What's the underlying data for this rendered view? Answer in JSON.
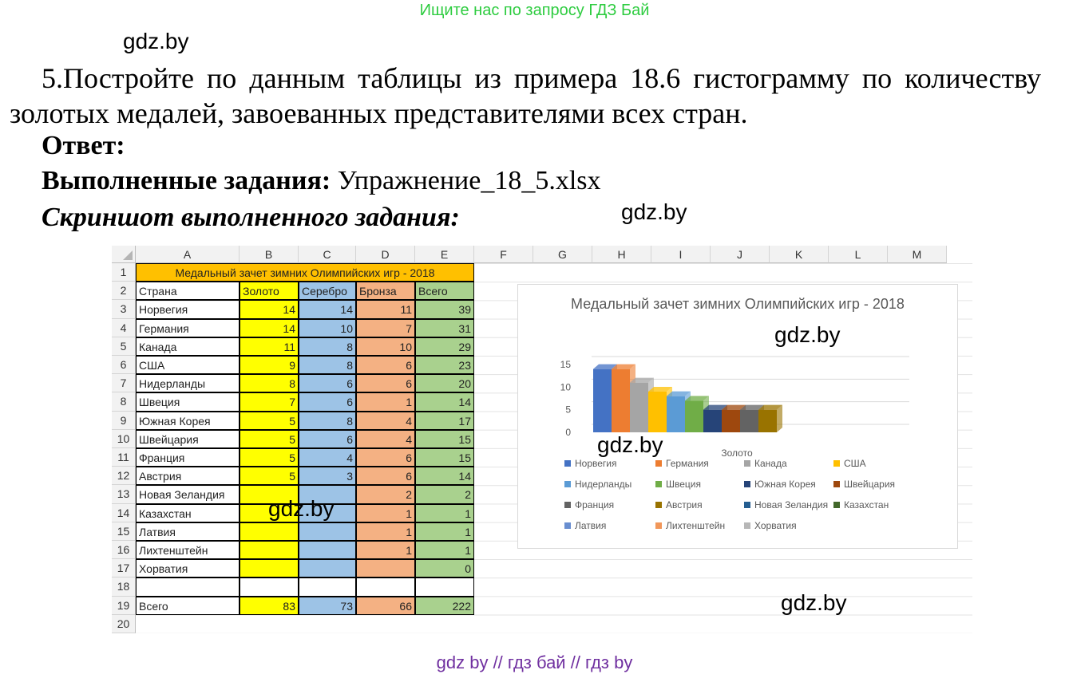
{
  "banner": "Ищите нас по запросу ГДЗ Бай",
  "watermarks": [
    "gdz.by",
    "gdz.by",
    "gdz.by",
    "gdz.by",
    "gdz.by",
    "gdz.by"
  ],
  "task": {
    "text": "5.Постройте по данным таблицы из примера 18.6 гистограмму по количеству золотых медалей, завоеванных представителями всех стран."
  },
  "answer_label": "Ответ:",
  "done_label": "Выполненные задания:",
  "done_file": "Упражнение_18_5.xlsx",
  "screenshot_label": "Скриншот выполненного задания:",
  "sheet": {
    "columns": [
      "A",
      "B",
      "C",
      "D",
      "E",
      "F",
      "G",
      "H",
      "I",
      "J",
      "K",
      "L",
      "M"
    ],
    "rows": [
      "1",
      "2",
      "3",
      "4",
      "5",
      "6",
      "7",
      "8",
      "9",
      "10",
      "11",
      "12",
      "13",
      "14",
      "15",
      "16",
      "17",
      "18",
      "19",
      "20"
    ],
    "title": "Медальный зачет зимних Олимпийских игр - 2018",
    "headers": [
      "Страна",
      "Золото",
      "Серебро",
      "Бронза",
      "Всего"
    ],
    "data": [
      [
        "Норвегия",
        "14",
        "14",
        "11",
        "39"
      ],
      [
        "Германия",
        "14",
        "10",
        "7",
        "31"
      ],
      [
        "Канада",
        "11",
        "8",
        "10",
        "29"
      ],
      [
        "США",
        "9",
        "8",
        "6",
        "23"
      ],
      [
        "Нидерланды",
        "8",
        "6",
        "6",
        "20"
      ],
      [
        "Швеция",
        "7",
        "6",
        "1",
        "14"
      ],
      [
        "Южная Корея",
        "5",
        "8",
        "4",
        "17"
      ],
      [
        "Швейцария",
        "5",
        "6",
        "4",
        "15"
      ],
      [
        "Франция",
        "5",
        "4",
        "6",
        "15"
      ],
      [
        "Австрия",
        "5",
        "3",
        "6",
        "14"
      ],
      [
        "Новая Зеландия",
        "",
        "",
        "2",
        "2"
      ],
      [
        "Казахстан",
        "",
        "",
        "1",
        "1"
      ],
      [
        "Латвия",
        "",
        "",
        "1",
        "1"
      ],
      [
        "Лихтенштейн",
        "",
        "",
        "1",
        "1"
      ],
      [
        "Хорватия",
        "",
        "",
        "",
        "0"
      ]
    ],
    "total": [
      "Всего",
      "83",
      "73",
      "66",
      "222"
    ],
    "colors": {
      "title": "#ffc000",
      "gold": "#ffff00",
      "silver": "#9dc3e6",
      "bronze": "#f4b183",
      "total": "#a9d18e"
    }
  },
  "chart_data": {
    "type": "bar",
    "title": "Медальный зачет зимних Олимпийских игр - 2018",
    "categories": [
      "Золото"
    ],
    "xlabel": "Золото",
    "ylim": [
      0,
      15
    ],
    "yticks": [
      "0",
      "5",
      "10",
      "15"
    ],
    "series": [
      {
        "name": "Норвегия",
        "values": [
          14
        ],
        "color": "#4472c4"
      },
      {
        "name": "Германия",
        "values": [
          14
        ],
        "color": "#ed7d31"
      },
      {
        "name": "Канада",
        "values": [
          11
        ],
        "color": "#a5a5a5"
      },
      {
        "name": "США",
        "values": [
          9
        ],
        "color": "#ffc000"
      },
      {
        "name": "Нидерланды",
        "values": [
          8
        ],
        "color": "#5b9bd5"
      },
      {
        "name": "Швеция",
        "values": [
          7
        ],
        "color": "#70ad47"
      },
      {
        "name": "Южная Корея",
        "values": [
          5
        ],
        "color": "#264478"
      },
      {
        "name": "Швейцария",
        "values": [
          5
        ],
        "color": "#9e480e"
      },
      {
        "name": "Франция",
        "values": [
          5
        ],
        "color": "#636363"
      },
      {
        "name": "Австрия",
        "values": [
          5
        ],
        "color": "#997300"
      },
      {
        "name": "Новая Зеландия",
        "values": [
          0
        ],
        "color": "#255e91"
      },
      {
        "name": "Казахстан",
        "values": [
          0
        ],
        "color": "#43682b"
      },
      {
        "name": "Латвия",
        "values": [
          0
        ],
        "color": "#698ed0"
      },
      {
        "name": "Лихтенштейн",
        "values": [
          0
        ],
        "color": "#f1975a"
      },
      {
        "name": "Хорватия",
        "values": [
          0
        ],
        "color": "#b7b7b7"
      }
    ],
    "legend": "bottom"
  },
  "footer": "gdz by  //  гдз бай  //  гдз by"
}
